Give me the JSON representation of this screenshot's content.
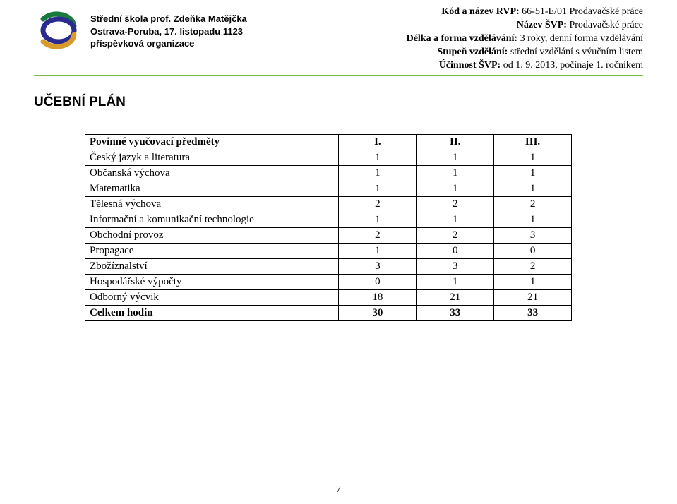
{
  "header": {
    "school": {
      "line1": "Střední škola prof. Zdeňka Matějčka",
      "line2": "Ostrava-Poruba, 17. listopadu 1123",
      "line3": "příspěvková organizace"
    },
    "logo": {
      "top_color": "#1a7a3e",
      "ring_color": "#2a2a8f",
      "bottom_color": "#d89a2b"
    },
    "meta": {
      "code_label": "Kód a název RVP:",
      "code_value": " 66-51-E/01 Prodavačské práce",
      "name_label": "Název ŠVP:",
      "name_value": " Prodavačské práce",
      "length_label": "Délka a forma vzdělávání:",
      "length_value": " 3 roky, denní forma vzdělávání",
      "level_label": "Stupeň vzdělání:",
      "level_value": " střední vzdělání s výučním listem",
      "effective_label": "Účinnost ŠVP:",
      "effective_value": " od 1. 9. 2013, počínaje 1. ročníkem"
    },
    "divider_color": "#82b84a"
  },
  "title": "UČEBNÍ PLÁN",
  "table": {
    "header": {
      "subject": "Povinné vyučovací předměty",
      "col1": "I.",
      "col2": "II.",
      "col3": "III."
    },
    "rows": [
      {
        "subject": "Český jazyk a literatura",
        "c1": "1",
        "c2": "1",
        "c3": "1"
      },
      {
        "subject": "Občanská výchova",
        "c1": "1",
        "c2": "1",
        "c3": "1"
      },
      {
        "subject": "Matematika",
        "c1": "1",
        "c2": "1",
        "c3": "1"
      },
      {
        "subject": "Tělesná výchova",
        "c1": "2",
        "c2": "2",
        "c3": "2"
      },
      {
        "subject": "Informační a komunikační technologie",
        "c1": "1",
        "c2": "1",
        "c3": "1"
      },
      {
        "subject": "Obchodní provoz",
        "c1": "2",
        "c2": "2",
        "c3": "3"
      },
      {
        "subject": "Propagace",
        "c1": "1",
        "c2": "0",
        "c3": "0"
      },
      {
        "subject": "Zbožíznalství",
        "c1": "3",
        "c2": "3",
        "c3": "2"
      },
      {
        "subject": "Hospodářské výpočty",
        "c1": "0",
        "c2": "1",
        "c3": "1"
      },
      {
        "subject": "Odborný výcvik",
        "c1": "18",
        "c2": "21",
        "c3": "21"
      }
    ],
    "total": {
      "subject": "Celkem hodin",
      "c1": "30",
      "c2": "33",
      "c3": "33"
    }
  },
  "page_number": "7"
}
